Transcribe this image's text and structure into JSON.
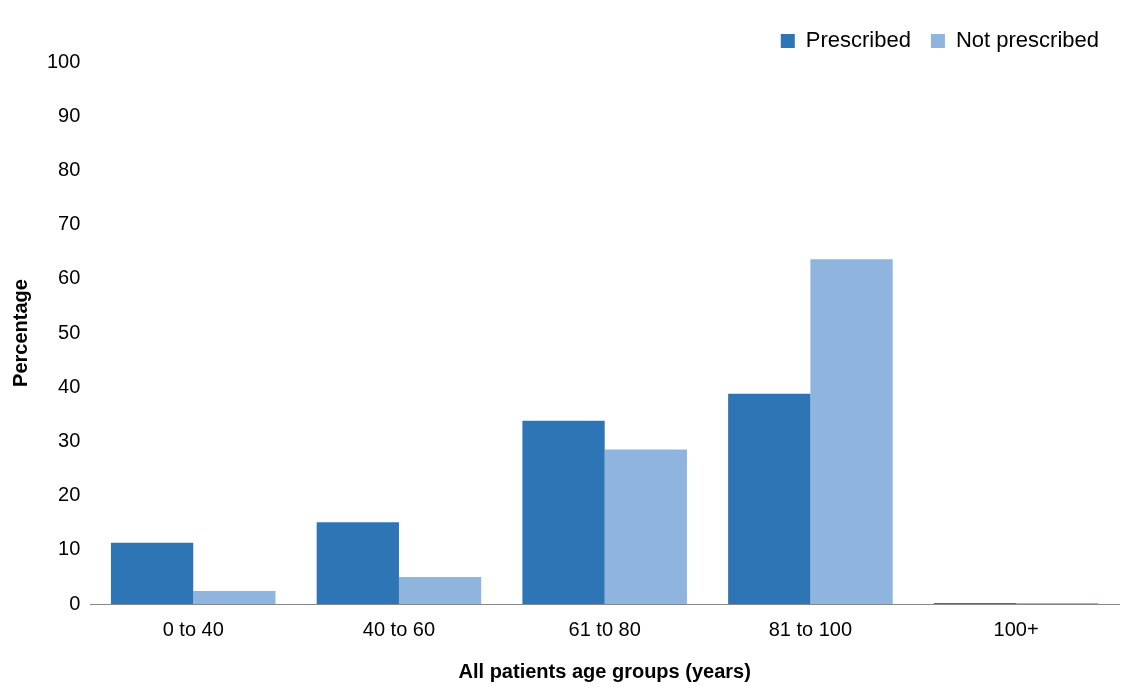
{
  "chart_data": {
    "type": "bar",
    "xlabel": "All patients age groups (years)",
    "ylabel": "Percentage",
    "categories": [
      "0 to 40",
      "40 to 60",
      "61 t0 80",
      "81 to 100",
      "100+"
    ],
    "series": [
      {
        "name": "Prescribed",
        "color": "#2e75b6",
        "values": [
          11.3,
          15.1,
          33.8,
          38.8,
          0.2
        ]
      },
      {
        "name": "Not prescribed",
        "color": "#8fb4de",
        "values": [
          2.4,
          5.0,
          28.5,
          63.6,
          0.2
        ]
      }
    ],
    "ylim": [
      0,
      100
    ],
    "yticks": [
      0,
      10,
      20,
      30,
      40,
      50,
      60,
      70,
      80,
      90,
      100
    ],
    "grid": false,
    "legend": "top right"
  }
}
